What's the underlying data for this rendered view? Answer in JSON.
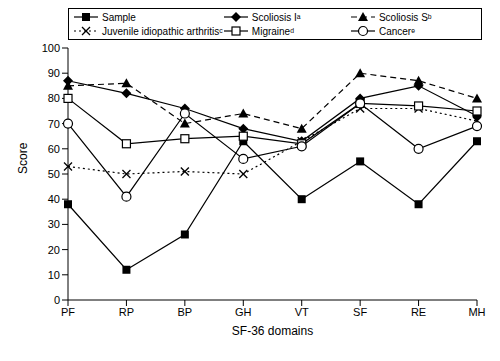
{
  "chart_data": {
    "type": "line",
    "x_label": "SF-36 domains",
    "y_label": "Score",
    "categories": [
      "PF",
      "RP",
      "BP",
      "GH",
      "VT",
      "SF",
      "RE",
      "MH"
    ],
    "ylim": [
      0,
      100
    ],
    "yticks": [
      0,
      10,
      20,
      30,
      40,
      50,
      60,
      70,
      80,
      90,
      100
    ],
    "grid": false,
    "legend": "top",
    "series": [
      {
        "name": "Sample",
        "color": "#000000",
        "marker": "square",
        "line_style": "solid",
        "values": [
          38,
          12,
          26,
          63,
          40,
          55,
          38,
          63
        ]
      },
      {
        "name": "Scoliosis Iᵃ",
        "color": "#000000",
        "marker": "diamond",
        "line_style": "solid",
        "values": [
          87,
          82,
          76,
          68,
          63,
          80,
          85,
          73
        ]
      },
      {
        "name": "Scoliosis Sᵇ",
        "color": "#000000",
        "marker": "triangle",
        "line_style": "dashed",
        "values": [
          85,
          86,
          70,
          74,
          68,
          90,
          87,
          80
        ]
      },
      {
        "name": "Juvenile idiopathic arthritisᶜ",
        "color": "#000000",
        "marker": "x",
        "line_style": "dotted",
        "values": [
          53,
          50,
          51,
          50,
          63,
          76,
          76,
          71
        ]
      },
      {
        "name": "Migraineᵈ",
        "color": "#000000",
        "marker": "square_open",
        "line_style": "solid",
        "values": [
          80,
          62,
          64,
          65,
          62,
          78,
          77,
          75
        ]
      },
      {
        "name": "Cancerᵉ",
        "color": "#000000",
        "marker": "circle_open",
        "line_style": "solid",
        "values": [
          70,
          41,
          74,
          56,
          61,
          78,
          60,
          69
        ]
      }
    ]
  }
}
